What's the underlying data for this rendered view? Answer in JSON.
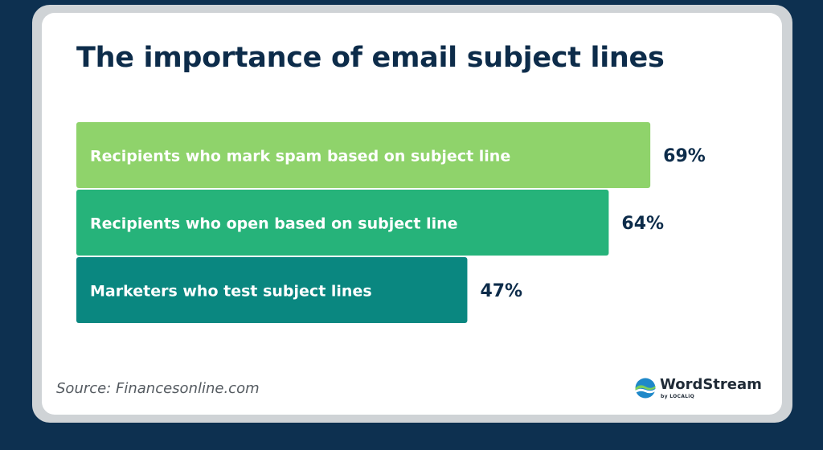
{
  "title": "The importance of email subject lines",
  "source": "Source: Financesonline.com",
  "brand": {
    "name": "WordStream",
    "sub": "by LOCALiQ",
    "logo_icon": "wordstream-wave-logo"
  },
  "colors": {
    "bar1": "#8fd36b",
    "bar2": "#26b37a",
    "bar3": "#0a8780",
    "text": "#0d2c4a",
    "background": "#0d3050"
  },
  "chart_data": {
    "type": "bar",
    "orientation": "horizontal",
    "categories": [
      "Recipients who mark spam based on subject line",
      "Recipients who open based on subject line",
      "Marketers who test subject lines"
    ],
    "values": [
      69,
      64,
      47
    ],
    "value_labels": [
      "69%",
      "64%",
      "47%"
    ],
    "unit": "%",
    "xlim": [
      0,
      100
    ],
    "grid": false,
    "legend": "none"
  }
}
